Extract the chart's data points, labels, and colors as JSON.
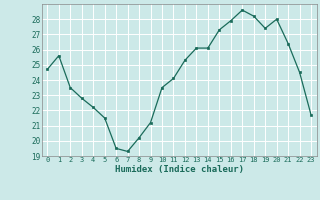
{
  "x": [
    0,
    1,
    2,
    3,
    4,
    5,
    6,
    7,
    8,
    9,
    10,
    11,
    12,
    13,
    14,
    15,
    16,
    17,
    18,
    19,
    20,
    21,
    22,
    23
  ],
  "y": [
    24.7,
    25.6,
    23.5,
    22.8,
    22.2,
    21.5,
    19.5,
    19.3,
    20.2,
    21.2,
    23.5,
    24.1,
    25.3,
    26.1,
    26.1,
    27.3,
    27.9,
    28.6,
    28.2,
    27.4,
    28.0,
    26.4,
    24.5,
    21.7
  ],
  "xlabel": "Humidex (Indice chaleur)",
  "xlim": [
    -0.5,
    23.5
  ],
  "ylim": [
    19,
    29
  ],
  "yticks": [
    19,
    20,
    21,
    22,
    23,
    24,
    25,
    26,
    27,
    28
  ],
  "xticks": [
    0,
    1,
    2,
    3,
    4,
    5,
    6,
    7,
    8,
    9,
    10,
    11,
    12,
    13,
    14,
    15,
    16,
    17,
    18,
    19,
    20,
    21,
    22,
    23
  ],
  "line_color": "#1a6b5a",
  "marker_color": "#1a6b5a",
  "bg_color": "#cce9e8",
  "grid_color": "#ffffff",
  "spine_color": "#888888",
  "tick_color": "#1a6b5a",
  "label_color": "#1a6b5a"
}
